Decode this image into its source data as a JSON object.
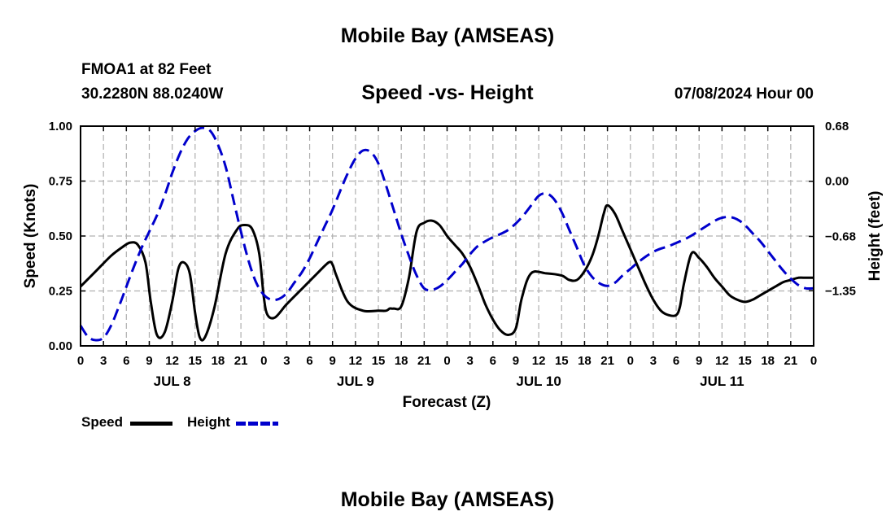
{
  "header": {
    "title": "Mobile Bay (AMSEAS)",
    "station": "FMOA1 at 82 Feet",
    "coords": "30.2280N  88.0240W",
    "subtitle": "Speed -vs- Height",
    "datetime": "07/08/2024 Hour 00"
  },
  "footer": {
    "title": "Mobile Bay (AMSEAS)"
  },
  "legend": {
    "speed_label": "Speed",
    "height_label": "Height"
  },
  "colors": {
    "speed": "#000000",
    "height": "#0000cc",
    "grid": "#b0b0b0"
  },
  "chart_data": {
    "type": "line",
    "xlabel": "Forecast (Z)",
    "ylabel": "Speed (Knots)",
    "y2label": "Height (feet)",
    "xlim": [
      0,
      96
    ],
    "ylim": [
      0,
      1.0
    ],
    "y2lim": [
      -2.03,
      0.68
    ],
    "x_tick_labels": [
      "0",
      "3",
      "6",
      "9",
      "12",
      "15",
      "18",
      "21",
      "0",
      "3",
      "6",
      "9",
      "12",
      "15",
      "18",
      "21",
      "0",
      "3",
      "6",
      "9",
      "12",
      "15",
      "18",
      "21",
      "0",
      "3",
      "6",
      "9",
      "12",
      "15",
      "18",
      "21",
      "0"
    ],
    "day_labels": [
      {
        "label": "JUL 8",
        "x": 12
      },
      {
        "label": "JUL 9",
        "x": 36
      },
      {
        "label": "JUL 10",
        "x": 60
      },
      {
        "label": "JUL 11",
        "x": 84
      }
    ],
    "y_ticks": [
      "0.00",
      "0.25",
      "0.50",
      "0.75",
      "1.00"
    ],
    "y2_ticks": [
      "-1.35",
      "-0.68",
      "0.00",
      "0.68"
    ],
    "grid": true,
    "series": [
      {
        "name": "Speed",
        "axis": "left",
        "x": [
          0,
          2,
          4,
          5.5,
          6.5,
          7.5,
          8.5,
          9.2,
          10,
          11,
          12,
          12.8,
          13.5,
          14.3,
          15,
          15.6,
          16.3,
          17.5,
          19,
          20.5,
          21.5,
          22.5,
          23.4,
          24,
          24.5,
          25.5,
          27,
          29,
          31,
          32.5,
          33,
          33.5,
          35,
          37,
          39,
          40,
          40.5,
          41,
          42,
          43,
          44,
          45,
          46,
          47,
          48,
          49,
          50,
          51,
          52,
          53,
          54,
          55,
          56,
          57,
          57.8,
          59,
          61,
          63,
          64,
          65,
          66,
          67,
          67.8,
          68.5,
          69,
          70,
          71,
          72,
          73,
          74,
          75,
          76,
          77,
          78,
          78.5,
          79,
          80,
          81,
          82,
          83,
          84,
          85,
          86,
          87,
          88,
          89,
          90,
          91,
          92,
          93,
          94,
          95,
          96
        ],
        "values": [
          0.27,
          0.34,
          0.41,
          0.45,
          0.47,
          0.46,
          0.38,
          0.2,
          0.05,
          0.06,
          0.2,
          0.35,
          0.38,
          0.33,
          0.15,
          0.04,
          0.04,
          0.17,
          0.42,
          0.53,
          0.55,
          0.53,
          0.42,
          0.22,
          0.14,
          0.13,
          0.19,
          0.26,
          0.33,
          0.38,
          0.37,
          0.32,
          0.2,
          0.16,
          0.16,
          0.16,
          0.17,
          0.17,
          0.18,
          0.31,
          0.52,
          0.56,
          0.57,
          0.55,
          0.5,
          0.46,
          0.42,
          0.36,
          0.28,
          0.19,
          0.12,
          0.07,
          0.05,
          0.08,
          0.22,
          0.33,
          0.33,
          0.32,
          0.3,
          0.3,
          0.34,
          0.41,
          0.5,
          0.6,
          0.64,
          0.6,
          0.52,
          0.44,
          0.36,
          0.28,
          0.21,
          0.16,
          0.14,
          0.14,
          0.18,
          0.28,
          0.42,
          0.4,
          0.36,
          0.31,
          0.27,
          0.23,
          0.21,
          0.2,
          0.21,
          0.23,
          0.25,
          0.27,
          0.29,
          0.3,
          0.31,
          0.31,
          0.31
        ]
      },
      {
        "name": "Height",
        "axis": "right",
        "x": [
          0,
          1,
          2,
          3,
          4,
          5,
          6,
          7,
          8,
          9,
          10,
          11,
          12,
          13,
          14,
          15,
          16,
          17,
          18,
          19,
          20,
          21,
          22,
          23,
          24,
          25,
          26,
          27,
          28,
          29,
          30,
          31,
          32,
          33,
          34,
          35,
          36,
          37,
          38,
          39,
          40,
          41,
          42,
          43,
          44,
          45,
          46,
          47,
          48,
          49,
          50,
          51,
          52,
          53,
          54,
          55,
          56,
          57,
          58,
          59,
          60,
          61,
          62,
          63,
          64,
          65,
          66,
          67,
          68,
          69,
          70,
          71,
          72,
          73,
          74,
          75,
          76,
          77,
          78,
          79,
          80,
          81,
          82,
          83,
          84,
          85,
          86,
          87,
          88,
          89,
          90,
          91,
          92,
          93,
          94,
          95,
          96
        ],
        "values": [
          -1.78,
          -1.92,
          -1.96,
          -1.93,
          -1.78,
          -1.55,
          -1.3,
          -1.05,
          -0.82,
          -0.62,
          -0.42,
          -0.18,
          0.1,
          0.34,
          0.52,
          0.62,
          0.66,
          0.62,
          0.45,
          0.18,
          -0.22,
          -0.62,
          -0.98,
          -1.25,
          -1.4,
          -1.46,
          -1.45,
          -1.38,
          -1.25,
          -1.12,
          -0.95,
          -0.75,
          -0.55,
          -0.35,
          -0.12,
          0.1,
          0.28,
          0.38,
          0.36,
          0.22,
          -0.05,
          -0.35,
          -0.65,
          -0.92,
          -1.16,
          -1.32,
          -1.34,
          -1.3,
          -1.22,
          -1.12,
          -1.02,
          -0.9,
          -0.8,
          -0.74,
          -0.69,
          -0.65,
          -0.6,
          -0.52,
          -0.42,
          -0.3,
          -0.18,
          -0.15,
          -0.22,
          -0.38,
          -0.6,
          -0.82,
          -1.04,
          -1.18,
          -1.26,
          -1.29,
          -1.25,
          -1.16,
          -1.08,
          -1.0,
          -0.93,
          -0.87,
          -0.83,
          -0.8,
          -0.76,
          -0.72,
          -0.67,
          -0.61,
          -0.55,
          -0.49,
          -0.45,
          -0.44,
          -0.47,
          -0.54,
          -0.64,
          -0.74,
          -0.86,
          -0.98,
          -1.1,
          -1.2,
          -1.28,
          -1.32,
          -1.32
        ]
      }
    ]
  }
}
